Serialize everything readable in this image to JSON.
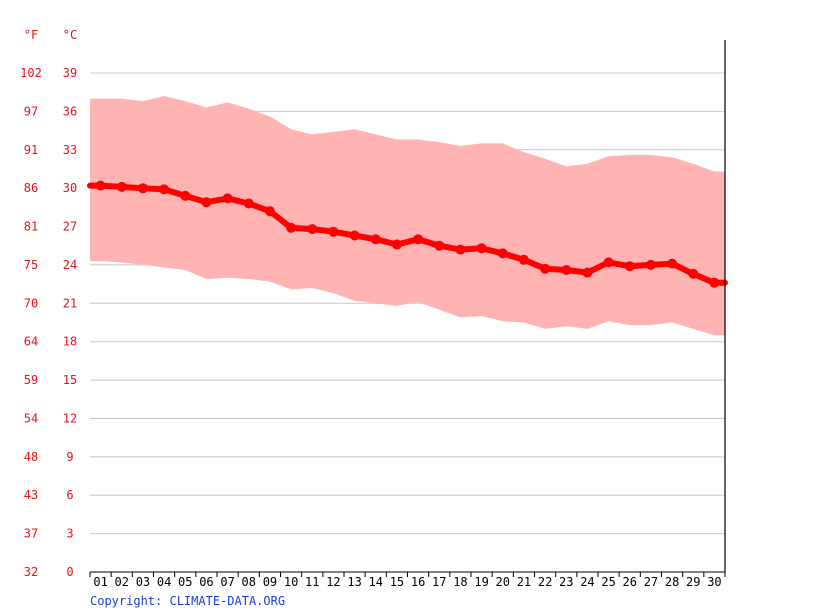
{
  "copyright": "Copyright: CLIMATE-DATA.ORG",
  "colors": {
    "line": "#ff0000",
    "band": "#ffb3b3",
    "grid": "#c8c8c8",
    "axis_text": "#e8101a",
    "copyright": "#1a3fd6"
  },
  "chart_data": {
    "type": "line",
    "x": [
      "01",
      "02",
      "03",
      "04",
      "05",
      "06",
      "07",
      "08",
      "09",
      "10",
      "11",
      "12",
      "13",
      "14",
      "15",
      "16",
      "17",
      "18",
      "19",
      "20",
      "21",
      "22",
      "23",
      "24",
      "25",
      "26",
      "27",
      "28",
      "29",
      "30"
    ],
    "series": [
      {
        "values": [
          30.2,
          30.1,
          30.0,
          29.9,
          29.4,
          28.9,
          29.2,
          28.8,
          28.2,
          26.9,
          26.8,
          26.6,
          26.3,
          26.0,
          25.6,
          26.0,
          25.5,
          25.2,
          25.3,
          24.9,
          24.4,
          23.7,
          23.6,
          23.4,
          24.2,
          23.9,
          24.0,
          24.1,
          23.3,
          22.6
        ]
      }
    ],
    "band": {
      "high": [
        37.0,
        37.0,
        36.8,
        37.2,
        36.8,
        36.3,
        36.7,
        36.2,
        35.6,
        34.6,
        34.2,
        34.4,
        34.6,
        34.2,
        33.8,
        33.8,
        33.6,
        33.3,
        33.5,
        33.5,
        32.8,
        32.3,
        31.7,
        31.9,
        32.5,
        32.6,
        32.6,
        32.4,
        31.9,
        31.3
      ],
      "low": [
        24.3,
        24.2,
        24.0,
        23.8,
        23.6,
        22.9,
        23.0,
        22.9,
        22.7,
        22.1,
        22.2,
        21.8,
        21.2,
        21.0,
        20.8,
        21.1,
        20.5,
        19.9,
        20.0,
        19.6,
        19.5,
        19.0,
        19.2,
        19.0,
        19.6,
        19.3,
        19.3,
        19.5,
        19.0,
        18.5
      ]
    },
    "y_celsius": {
      "label": "°C",
      "ticks": [
        0,
        3,
        6,
        9,
        12,
        15,
        18,
        21,
        24,
        27,
        30,
        33,
        36,
        39
      ],
      "ylim": [
        0,
        39
      ]
    },
    "y_fahrenheit": {
      "label": "°F",
      "ticks": [
        32,
        37,
        43,
        48,
        54,
        59,
        64,
        70,
        75,
        81,
        86,
        91,
        97,
        102
      ]
    },
    "grid": true
  }
}
